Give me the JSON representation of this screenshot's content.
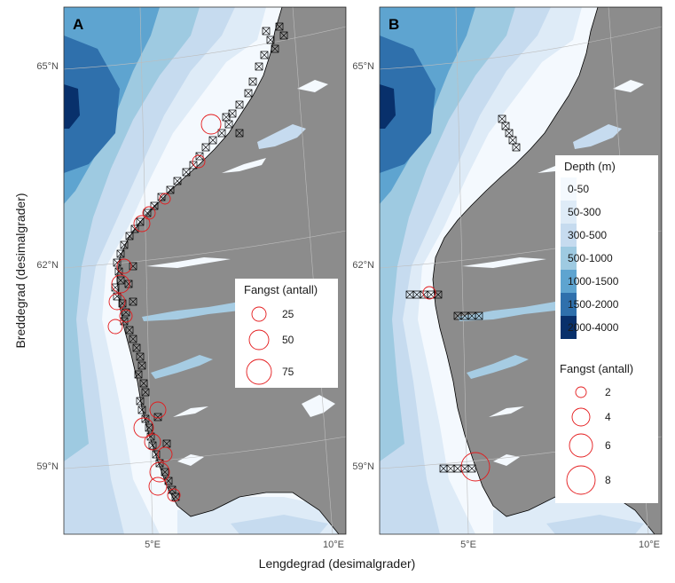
{
  "chart_data": {
    "type": "map",
    "xlabel": "Lengdegrad (desimalgrader)",
    "ylabel": "Breddegrad (desimalgrader)",
    "x_ticks": [
      "5°E",
      "10°E"
    ],
    "y_ticks": [
      "65°N",
      "62°N",
      "59°N"
    ],
    "panels": [
      {
        "letter": "A",
        "catch_legend": {
          "title": "Fangst (antall)",
          "entries": [
            {
              "label": "25",
              "value": 25
            },
            {
              "label": "50",
              "value": 50
            },
            {
              "label": "75",
              "value": 75
            }
          ]
        }
      },
      {
        "letter": "B",
        "depth_legend": {
          "title": "Depth (m)",
          "classes": [
            {
              "label": "0-50",
              "color": "#f4f9fe"
            },
            {
              "label": "50-300",
              "color": "#deebf7"
            },
            {
              "label": "300-500",
              "color": "#c6dbef"
            },
            {
              "label": "500-1000",
              "color": "#9ecae1"
            },
            {
              "label": "1000-1500",
              "color": "#5ea4d0"
            },
            {
              "label": "1500-2000",
              "color": "#2f70ac"
            },
            {
              "label": "2000-4000",
              "color": "#08306b"
            }
          ]
        },
        "catch_legend": {
          "title": "Fangst (antall)",
          "entries": [
            {
              "label": "2",
              "value": 2
            },
            {
              "label": "4",
              "value": 4
            },
            {
              "label": "6",
              "value": 6
            },
            {
              "label": "8",
              "value": 8
            }
          ]
        }
      }
    ]
  },
  "colors": {
    "land": "#8c8c8c",
    "coast_outline": "#000000",
    "catch_circle": "#e41a1c",
    "station_marker": "#000000",
    "graticule": "#bdbdbd"
  }
}
